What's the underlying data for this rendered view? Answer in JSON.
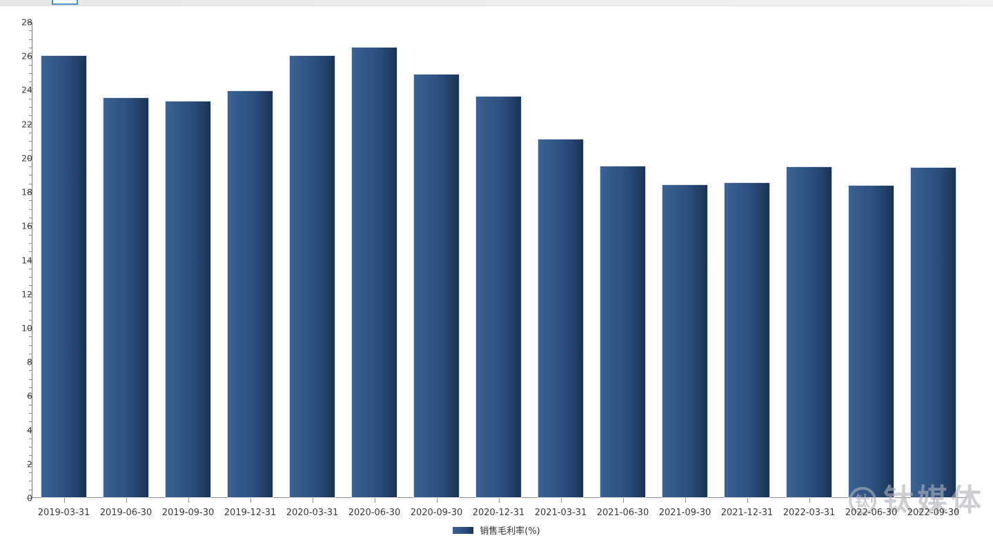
{
  "topbar": {
    "tab_outline_color": "#4a90d2"
  },
  "chart_data": {
    "type": "bar",
    "title": "",
    "categories": [
      "2019-03-31",
      "2019-06-30",
      "2019-09-30",
      "2019-12-31",
      "2020-03-31",
      "2020-06-30",
      "2020-09-30",
      "2020-12-31",
      "2021-03-31",
      "2021-06-30",
      "2021-09-30",
      "2021-12-31",
      "2022-03-31",
      "2022-06-30",
      "2022-09-30"
    ],
    "series": [
      {
        "name": "销售毛利率(%)",
        "values": [
          25.97,
          23.47,
          23.27,
          23.9,
          25.97,
          26.47,
          24.86,
          23.58,
          21.06,
          19.48,
          18.37,
          18.49,
          19.44,
          18.32,
          19.37
        ]
      }
    ],
    "legend_label": "销售毛利率(%)",
    "legend_position": "bottom-center",
    "xlabel": "",
    "ylabel": "",
    "ylim": [
      0,
      28
    ],
    "y_major_tick_interval": 2,
    "y_minor_tick_interval": 0.5,
    "grid": false,
    "bar_color_left": "#3b6292",
    "bar_color_mid": "#2c5080",
    "bar_color_right": "#1b3456",
    "axis_color": "#8a8a8a",
    "tick_label_color": "#3a3a3a"
  },
  "watermark": {
    "logo_char": "钛",
    "text": "钛媒体"
  }
}
